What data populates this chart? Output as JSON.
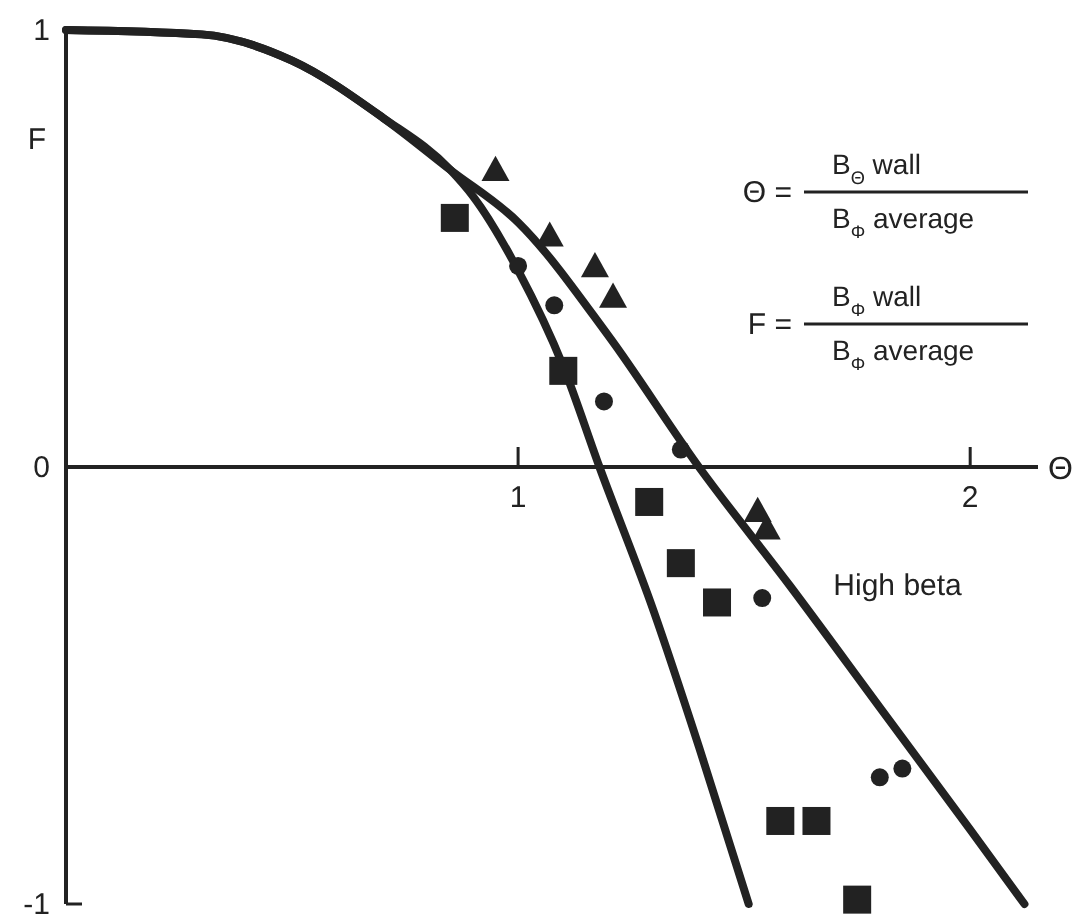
{
  "chart_data": {
    "type": "line",
    "xlabel": "Θ",
    "ylabel": "F",
    "xlim": [
      0,
      2.15
    ],
    "ylim": [
      -1,
      1
    ],
    "xticks": [
      1,
      2
    ],
    "yticks": [
      -1,
      0,
      1
    ],
    "grid": false,
    "marker": "none",
    "line_style": "solid",
    "series": [
      {
        "name": "High beta",
        "color": "#222222",
        "x": [
          0,
          0.3,
          0.5,
          0.7,
          0.85,
          1.0,
          1.2,
          1.4,
          1.6,
          1.8,
          2.0,
          2.12
        ],
        "values": [
          1,
          0.99,
          0.93,
          0.8,
          0.68,
          0.56,
          0.3,
          0,
          -0.27,
          -0.55,
          -0.83,
          -1
        ]
      },
      {
        "color": "#222222",
        "x": [
          0,
          0.3,
          0.5,
          0.7,
          0.85,
          0.9,
          1.0,
          1.1,
          1.18,
          1.3,
          1.4,
          1.51
        ],
        "values": [
          1,
          0.99,
          0.93,
          0.8,
          0.68,
          0.62,
          0.45,
          0.23,
          0,
          -0.33,
          -0.64,
          -1
        ]
      },
      {
        "type": "scatter",
        "marker": "triangle",
        "color": "#222222",
        "x": [
          0.95,
          1.07,
          1.17,
          1.21,
          1.53,
          1.55
        ],
        "values": [
          0.68,
          0.53,
          0.46,
          0.39,
          -0.1,
          -0.14
        ]
      },
      {
        "type": "scatter",
        "marker": "circle",
        "color": "#222222",
        "x": [
          1.0,
          1.08,
          1.19,
          1.36,
          1.54,
          1.8,
          1.85
        ],
        "values": [
          0.46,
          0.37,
          0.15,
          0.04,
          -0.3,
          -0.71,
          -0.69
        ]
      },
      {
        "type": "scatter",
        "marker": "square",
        "color": "#222222",
        "x": [
          0.86,
          1.1,
          1.29,
          1.36,
          1.44,
          1.58,
          1.66,
          1.75
        ],
        "values": [
          0.57,
          0.22,
          -0.08,
          -0.22,
          -0.31,
          -0.81,
          -0.81,
          -0.99
        ]
      }
    ],
    "annotations": [
      "Θ =",
      "B$_{Θ}$ wall",
      "B$_{Φ}$ average",
      "F =",
      "B$_{Φ}$ wall",
      "B$_{Φ}$ average"
    ]
  }
}
